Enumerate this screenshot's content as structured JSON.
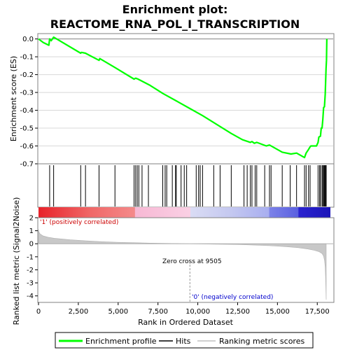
{
  "chart_data": {
    "type": "line",
    "title": "Enrichment plot:",
    "subtitle": "REACTOME_RNA_POL_I_TRANSCRIPTION",
    "es_panel": {
      "ylabel": "Enrichment score (ES)",
      "ylim": [
        -0.7,
        0.03
      ],
      "yticks": [
        0.0,
        -0.1,
        -0.2,
        -0.3,
        -0.4,
        -0.5,
        -0.6,
        -0.7
      ],
      "ytick_labels": [
        "0.0",
        "-0.1",
        "-0.2",
        "-0.3",
        "-0.4",
        "-0.5",
        "-0.6",
        "-0.7"
      ],
      "series_color": "#00ff00",
      "points": [
        [
          0,
          0.0
        ],
        [
          300,
          -0.02
        ],
        [
          650,
          -0.035
        ],
        [
          700,
          0.0
        ],
        [
          800,
          -0.01
        ],
        [
          950,
          0.01
        ],
        [
          2650,
          -0.08
        ],
        [
          2700,
          -0.075
        ],
        [
          2950,
          -0.08
        ],
        [
          3800,
          -0.12
        ],
        [
          3850,
          -0.11
        ],
        [
          4800,
          -0.16
        ],
        [
          6000,
          -0.225
        ],
        [
          6100,
          -0.22
        ],
        [
          6250,
          -0.225
        ],
        [
          7000,
          -0.26
        ],
        [
          7800,
          -0.305
        ],
        [
          8600,
          -0.345
        ],
        [
          9500,
          -0.39
        ],
        [
          10300,
          -0.43
        ],
        [
          11200,
          -0.48
        ],
        [
          12100,
          -0.53
        ],
        [
          12800,
          -0.565
        ],
        [
          13300,
          -0.58
        ],
        [
          13400,
          -0.575
        ],
        [
          13550,
          -0.585
        ],
        [
          13700,
          -0.58
        ],
        [
          14300,
          -0.6
        ],
        [
          14500,
          -0.595
        ],
        [
          15300,
          -0.635
        ],
        [
          15850,
          -0.645
        ],
        [
          16200,
          -0.64
        ],
        [
          16700,
          -0.665
        ],
        [
          16800,
          -0.64
        ],
        [
          16950,
          -0.62
        ],
        [
          17050,
          -0.605
        ],
        [
          17100,
          -0.6
        ],
        [
          17450,
          -0.6
        ],
        [
          17550,
          -0.58
        ],
        [
          17600,
          -0.55
        ],
        [
          17700,
          -0.545
        ],
        [
          17750,
          -0.5
        ],
        [
          17800,
          -0.5
        ],
        [
          17850,
          -0.45
        ],
        [
          17900,
          -0.385
        ],
        [
          17950,
          -0.38
        ],
        [
          18000,
          -0.31
        ],
        [
          18020,
          -0.25
        ],
        [
          18050,
          -0.165
        ],
        [
          18080,
          -0.12
        ],
        [
          18100,
          0.0
        ]
      ]
    },
    "hits": [
      700,
      950,
      2650,
      2950,
      3800,
      4800,
      6000,
      6100,
      6200,
      6300,
      6500,
      6900,
      7800,
      7950,
      8050,
      8400,
      8600,
      8650,
      8950,
      9150,
      9300,
      9900,
      10050,
      10150,
      10300,
      11000,
      11400,
      12100,
      12900,
      13100,
      13300,
      13400,
      13600,
      13700,
      14200,
      14500,
      14600,
      15300,
      15800,
      16200,
      16700,
      16800,
      16950,
      17050,
      17550,
      17650,
      17700,
      17800,
      17850,
      17900,
      17950,
      18000,
      18030,
      18060
    ],
    "metric_panel": {
      "ylabel": "Ranked list metric (Signal2Noise)",
      "ylim": [
        -4.5,
        2.0
      ],
      "yticks": [
        2,
        1,
        0,
        -1,
        -2,
        -3,
        -4
      ],
      "ytick_labels": [
        "2",
        "1",
        "0",
        "-1",
        "-2",
        "-3",
        "-4"
      ],
      "points": [
        [
          0,
          1.1
        ],
        [
          30,
          0.9
        ],
        [
          100,
          0.75
        ],
        [
          300,
          0.6
        ],
        [
          600,
          0.5
        ],
        [
          1000,
          0.42
        ],
        [
          2000,
          0.3
        ],
        [
          3000,
          0.22
        ],
        [
          4000,
          0.16
        ],
        [
          5000,
          0.11
        ],
        [
          6000,
          0.08
        ],
        [
          7000,
          0.05
        ],
        [
          8000,
          0.03
        ],
        [
          9000,
          0.01
        ],
        [
          9505,
          0.0
        ],
        [
          11000,
          -0.03
        ],
        [
          12500,
          -0.06
        ],
        [
          13500,
          -0.1
        ],
        [
          14500,
          -0.15
        ],
        [
          15500,
          -0.22
        ],
        [
          16300,
          -0.3
        ],
        [
          16900,
          -0.4
        ],
        [
          17300,
          -0.5
        ],
        [
          17600,
          -0.6
        ],
        [
          17800,
          -0.75
        ],
        [
          17900,
          -0.95
        ],
        [
          17960,
          -1.3
        ],
        [
          18000,
          -1.8
        ],
        [
          18030,
          -2.8
        ],
        [
          18060,
          -4.3
        ]
      ],
      "zero_cross_label": "Zero cross at 9505",
      "zero_cross": 9505,
      "pos_label": "'1' (positively correlated)",
      "neg_label": "'0' (negatively correlated)"
    },
    "xlabel": "Rank in Ordered Dataset",
    "xlim": [
      0,
      18500
    ],
    "xticks": [
      0,
      2500,
      5000,
      7500,
      10000,
      12500,
      15000,
      17500
    ],
    "xtick_labels": [
      "0",
      "2,500",
      "5,000",
      "7,500",
      "10,000",
      "12,500",
      "15,000",
      "17,500"
    ],
    "n_genes": 18100,
    "legend": {
      "placement": "bottom",
      "items": [
        {
          "label": "Enrichment profile",
          "color": "#00ff00"
        },
        {
          "label": "Hits",
          "color": "#000000"
        },
        {
          "label": "Ranking metric scores",
          "color": "#c0c0c0"
        }
      ]
    }
  }
}
